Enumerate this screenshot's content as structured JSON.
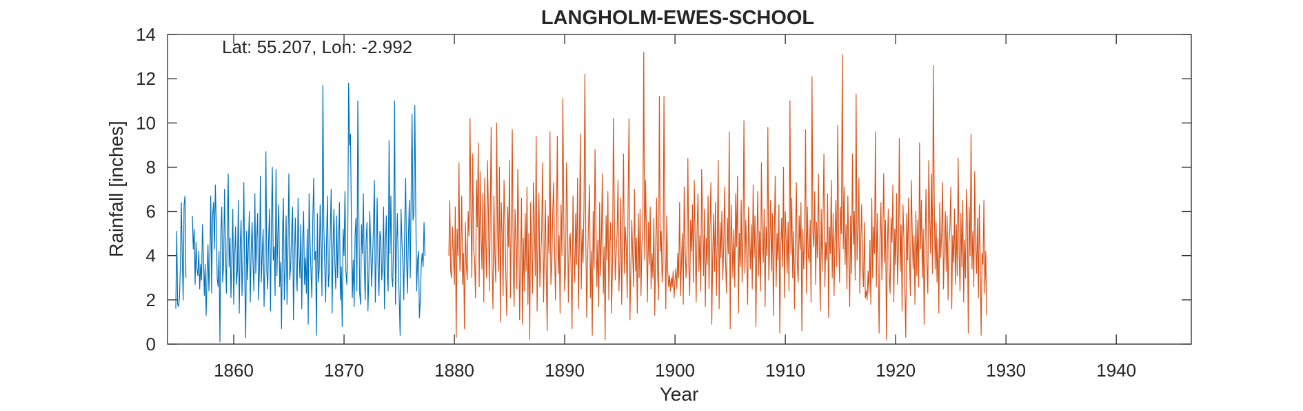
{
  "chart_data": {
    "type": "line",
    "title": "LANGHOLM-EWES-SCHOOL",
    "xlabel": "Year",
    "ylabel": "Rainfall [inches]",
    "annotation": "Lat: 55.207, Lon: -2.992",
    "xlim": [
      1854,
      1946.8
    ],
    "ylim": [
      0,
      14
    ],
    "x_ticks": [
      1860,
      1870,
      1880,
      1890,
      1900,
      1910,
      1920,
      1930,
      1940
    ],
    "y_ticks": [
      0,
      2,
      4,
      6,
      8,
      10,
      12,
      14
    ],
    "grid": false,
    "legend": "none",
    "series_colors": [
      "#0072BD",
      "#D95319"
    ],
    "series": [
      {
        "x_start": 1854.75,
        "step": 0.0833333,
        "values": [
          1.6,
          5.1,
          1.8,
          1.7,
          2.1,
          3.6,
          6.4,
          4.0,
          2.0,
          6.3,
          6.7,
          3.0,
          null,
          null,
          null,
          null,
          null,
          null,
          5.8,
          4.3,
          5.2,
          2.7,
          4.6,
          3.4,
          3.1,
          4.2,
          2.5,
          3.6,
          2.9,
          5.4,
          4.1,
          2.2,
          3.6,
          1.3,
          3.2,
          4.5,
          2.4,
          3.8,
          6.7,
          2.3,
          5.8,
          6.4,
          4.3,
          7.2,
          5.5,
          3.0,
          2.6,
          4.2,
          0.1,
          5.0,
          6.2,
          2.8,
          3.6,
          7.0,
          4.1,
          2.3,
          5.2,
          7.7,
          3.5,
          4.8,
          2.1,
          3.9,
          6.1,
          1.8,
          4.0,
          5.3,
          2.7,
          3.3,
          6.5,
          1.4,
          4.4,
          5.6,
          2.2,
          3.8,
          7.3,
          3.0,
          0.3,
          5.1,
          2.9,
          4.6,
          6.0,
          1.9,
          4.2,
          5.5,
          3.6,
          2.4,
          6.8,
          3.2,
          4.7,
          5.9,
          2.0,
          3.4,
          7.6,
          2.8,
          4.1,
          5.2,
          1.7,
          3.9,
          8.7,
          3.3,
          2.5,
          4.8,
          6.1,
          1.5,
          5.5,
          8.0,
          3.8,
          4.4,
          2.2,
          7.9,
          3.1,
          5.0,
          6.3,
          2.6,
          3.7,
          0.7,
          4.9,
          6.6,
          2.0,
          3.5,
          5.8,
          1.8,
          4.3,
          7.7,
          2.9,
          3.6,
          5.1,
          6.2,
          1.1,
          4.0,
          5.7,
          3.2,
          2.4,
          6.6,
          4.1,
          3.0,
          5.4,
          1.6,
          4.6,
          6.0,
          2.7,
          3.9,
          2.3,
          5.2,
          0.9,
          6.8,
          4.7,
          3.3,
          2.1,
          5.6,
          7.5,
          3.8,
          4.2,
          0.4,
          5.9,
          2.8,
          3.4,
          6.3,
          4.5,
          2.2,
          11.7,
          5.3,
          3.6,
          1.9,
          4.8,
          6.7,
          2.6,
          3.2,
          5.0,
          7.0,
          1.4,
          4.3,
          6.1,
          3.7,
          2.5,
          5.8,
          3.0,
          4.6,
          6.4,
          2.0,
          3.5,
          0.8,
          5.2,
          4.0,
          6.9,
          3.3,
          2.7,
          4.4,
          11.8,
          9.0,
          9.5,
          5.6,
          2.1,
          3.8,
          1.7,
          4.9,
          5.7,
          2.4,
          11.0,
          6.3,
          2.3,
          1.8,
          5.4,
          4.1,
          6.8,
          3.6,
          2.0,
          4.7,
          5.5,
          1.5,
          3.1,
          6.0,
          4.4,
          2.6,
          3.8,
          5.3,
          7.4,
          1.9,
          4.0,
          6.6,
          3.4,
          2.2,
          5.1,
          4.8,
          2.9,
          3.6,
          6.2,
          1.6,
          4.5,
          5.8,
          3.2,
          2.4,
          9.2,
          4.1,
          6.7,
          3.0,
          2.6,
          5.0,
          11.0,
          1.8,
          4.3,
          5.9,
          3.5,
          2.1,
          0.4,
          6.1,
          4.6,
          3.7,
          2.0,
          5.4,
          7.5,
          3.9,
          2.3,
          4.8,
          6.5,
          3.0,
          6.7,
          10.4,
          5.6,
          5.9,
          10.8,
          6.1,
          2.4,
          3.8,
          4.2,
          1.2,
          2.0,
          3.6,
          4.1,
          3.5,
          5.5,
          4.0
        ]
      },
      {
        "x_start": 1879.5,
        "step": 0.0833333,
        "values": [
          4.0,
          6.5,
          3.3,
          3.0,
          5.3,
          4.0,
          2.7,
          6.2,
          0.3,
          5.2,
          4.0,
          8.2,
          3.3,
          4.2,
          6.7,
          2.7,
          4.1,
          0.7,
          5.5,
          3.6,
          2.9,
          6.0,
          4.9,
          10.2,
          6.1,
          3.0,
          8.6,
          4.3,
          3.8,
          2.1,
          7.4,
          5.3,
          9.1,
          2.6,
          7.8,
          5.0,
          3.4,
          6.8,
          1.9,
          7.5,
          4.7,
          3.0,
          8.3,
          6.1,
          2.4,
          5.7,
          9.8,
          3.5,
          1.6,
          6.7,
          4.1,
          2.8,
          10.0,
          5.2,
          3.3,
          8.0,
          1.0,
          6.4,
          4.9,
          2.2,
          7.4,
          5.6,
          3.0,
          1.3,
          6.2,
          4.4,
          8.3,
          2.1,
          5.5,
          9.7,
          3.7,
          1.7,
          6.1,
          4.6,
          2.5,
          7.9,
          5.4,
          1.1,
          3.9,
          6.6,
          0.9,
          4.8,
          2.4,
          5.9,
          3.3,
          7.1,
          1.8,
          5.0,
          0.2,
          6.4,
          4.2,
          2.3,
          7.3,
          5.5,
          3.1,
          9.4,
          1.5,
          4.7,
          6.8,
          2.6,
          3.9,
          5.2,
          8.2,
          1.9,
          4.3,
          6.5,
          3.0,
          0.6,
          5.8,
          4.1,
          9.6,
          2.7,
          3.6,
          6.0,
          7.3,
          4.2,
          2.0,
          5.4,
          9.4,
          3.2,
          4.9,
          1.4,
          6.3,
          4.0,
          11.1,
          5.7,
          2.4,
          3.5,
          8.2,
          6.1,
          1.9,
          4.6,
          5.0,
          3.3,
          0.7,
          6.7,
          4.3,
          2.8,
          5.9,
          3.6,
          7.5,
          1.6,
          4.8,
          9.5,
          2.5,
          5.2,
          3.7,
          6.3,
          12.2,
          4.5,
          1.2,
          3.9,
          5.6,
          7.2,
          2.1,
          4.2,
          0.4,
          6.0,
          3.4,
          8.8,
          5.3,
          2.6,
          4.7,
          1.7,
          6.4,
          3.1,
          5.0,
          7.7,
          2.3,
          4.4,
          0.2,
          5.8,
          3.8,
          6.9,
          2.0,
          4.6,
          5.5,
          1.4,
          3.6,
          10.2,
          6.2,
          2.9,
          4.1,
          5.0,
          7.4,
          2.4,
          3.7,
          6.6,
          1.8,
          4.9,
          8.6,
          3.2,
          5.3,
          4.4,
          2.1,
          6.7,
          10.2,
          1.1,
          3.5,
          5.6,
          4.0,
          2.6,
          7.0,
          3.3,
          4.8,
          1.4,
          5.9,
          3.0,
          6.1,
          2.2,
          4.5,
          5.2,
          13.2,
          3.8,
          7.4,
          4.7,
          1.9,
          5.5,
          3.6,
          6.2,
          2.5,
          4.1,
          3.0,
          5.7,
          1.3,
          4.4,
          6.6,
          3.5,
          2.0,
          11.2,
          4.2,
          5.1,
          2.8,
          3.7,
          11.2,
          4.9,
          1.6,
          5.8,
          3.4,
          2.6,
          3.1,
          2.4,
          3.0,
          2.6,
          3.3,
          2.1,
          2.9,
          3.4,
          2.5,
          4.1,
          3.0,
          6.4,
          2.2,
          3.7,
          5.0,
          1.8,
          7.1,
          4.4,
          3.0,
          4.1,
          8.4,
          3.5,
          2.2,
          5.6,
          4.2,
          6.3,
          2.8,
          7.4,
          4.6,
          1.9,
          5.2,
          6.8,
          3.3,
          4.9,
          2.4,
          7.9,
          5.6,
          3.1,
          6.1,
          1.7,
          4.8,
          3.6,
          6.7,
          2.5,
          5.3,
          7.3,
          0.9,
          4.0,
          5.9,
          3.3,
          6.4,
          2.2,
          4.7,
          8.3,
          1.6,
          5.5,
          3.9,
          6.0,
          2.9,
          4.5,
          7.1,
          3.7,
          2.3,
          5.7,
          4.1,
          9.6,
          0.7,
          6.3,
          4.8,
          3.0,
          5.2,
          2.6,
          6.8,
          4.4,
          7.6,
          1.4,
          5.0,
          3.5,
          6.5,
          2.8,
          4.9,
          10.1,
          3.2,
          5.6,
          4.1,
          1.8,
          6.2,
          4.7,
          3.4,
          5.4,
          2.5,
          7.2,
          3.9,
          5.8,
          0.8,
          4.3,
          6.9,
          3.1,
          5.1,
          2.4,
          8.2,
          4.6,
          3.7,
          6.1,
          1.7,
          5.3,
          4.0,
          9.8,
          2.9,
          4.5,
          6.5,
          3.3,
          5.9,
          1.3,
          4.8,
          7.6,
          2.6,
          5.0,
          3.8,
          6.3,
          0.5,
          4.4,
          5.7,
          3.5,
          8.0,
          2.1,
          6.0,
          4.7,
          3.2,
          5.5,
          2.4,
          11.0,
          4.1,
          6.6,
          3.0,
          5.1,
          1.6,
          4.9,
          7.3,
          3.6,
          2.8,
          5.8,
          4.3,
          6.4,
          0.6,
          5.2,
          3.4,
          4.8,
          9.7,
          2.3,
          6.2,
          4.0,
          3.7,
          5.6,
          1.9,
          12.1,
          5.0,
          4.4,
          6.9,
          2.7,
          5.5,
          3.9,
          7.7,
          4.2,
          1.5,
          6.1,
          3.3,
          5.7,
          8.6,
          2.6,
          4.6,
          3.8,
          6.8,
          1.2,
          5.3,
          4.1,
          7.4,
          3.0,
          5.9,
          2.2,
          4.7,
          6.5,
          3.5,
          9.9,
          4.9,
          2.8,
          6.2,
          5.0,
          13.1,
          4.3,
          7.1,
          3.6,
          5.4,
          2.5,
          6.7,
          4.0,
          1.7,
          5.8,
          3.2,
          8.6,
          4.5,
          6.0,
          2.9,
          11.3,
          3.8,
          5.1,
          7.5,
          2.3,
          4.6,
          6.3,
          3.4,
          2.6,
          5.5,
          2.1,
          2.4,
          2.0,
          3.3,
          2.3,
          4.7,
          1.8,
          6.6,
          3.0,
          5.3,
          4.1,
          9.6,
          2.6,
          5.9,
          3.5,
          0.5,
          4.8,
          6.4,
          2.9,
          5.0,
          7.7,
          3.7,
          5.6,
          0.2,
          4.4,
          6.1,
          3.1,
          2.3,
          5.7,
          4.6,
          7.2,
          1.9,
          5.2,
          3.6,
          6.8,
          2.7,
          4.2,
          9.3,
          3.3,
          5.4,
          1.5,
          6.3,
          4.7,
          2.5,
          0.3,
          5.9,
          3.8,
          6.6,
          4.0,
          2.2,
          7.4,
          5.1,
          3.4,
          4.9,
          1.8,
          6.0,
          3.1,
          5.6,
          2.6,
          9.1,
          4.3,
          6.5,
          3.0,
          5.2,
          0.9,
          4.5,
          7.0,
          3.6,
          2.3,
          8.3,
          5.7,
          4.1,
          7.7,
          3.2,
          12.6,
          6.2,
          3.4,
          5.5,
          2.8,
          4.8,
          1.4,
          6.4,
          3.9,
          5.0,
          7.3,
          2.5,
          4.4,
          6.0,
          3.3,
          5.8,
          2.0,
          4.6,
          5.3,
          7.1,
          1.6,
          4.9,
          3.7,
          6.1,
          2.7,
          5.4,
          3.1,
          8.4,
          4.2,
          2.4,
          5.9,
          3.5,
          6.5,
          1.9,
          4.7,
          3.0,
          7.0,
          5.6,
          0.5,
          6.2,
          4.0,
          9.5,
          3.4,
          5.1,
          2.6,
          7.8,
          4.5,
          3.2,
          5.7,
          2.1,
          6.3,
          3.8,
          0.4,
          4.1,
          3.6,
          6.5,
          2.3,
          4.2,
          1.3
        ]
      }
    ]
  }
}
